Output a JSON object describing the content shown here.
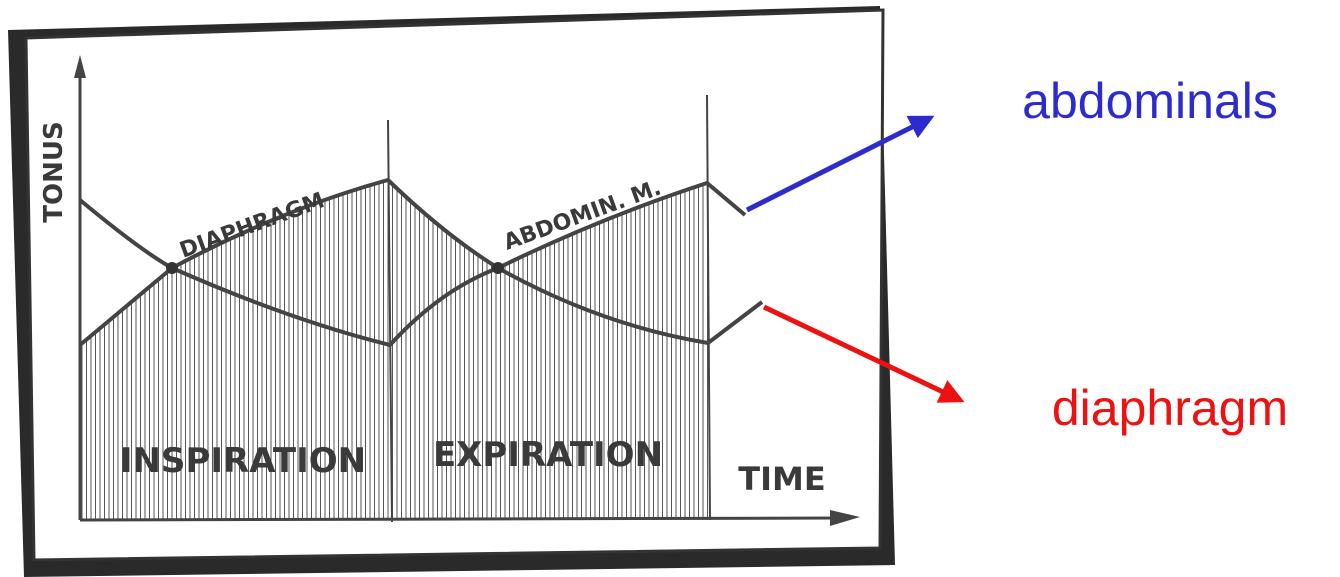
{
  "y_axis_label": "TONUS",
  "x_axis_label": "TIME",
  "curve_labels": {
    "diaphragm": "DIAPHRAGM",
    "abdominal": "ABDOMIN. M."
  },
  "phases": {
    "inspiration": "INSPIRATION",
    "expiration": "EXPIRATION"
  },
  "callouts": {
    "abdominals": "abdominals",
    "diaphragm": "diaphragm"
  },
  "colors": {
    "abdominals": "#2b2bd0",
    "diaphragm": "#ee1111",
    "ink": "#444444"
  }
}
